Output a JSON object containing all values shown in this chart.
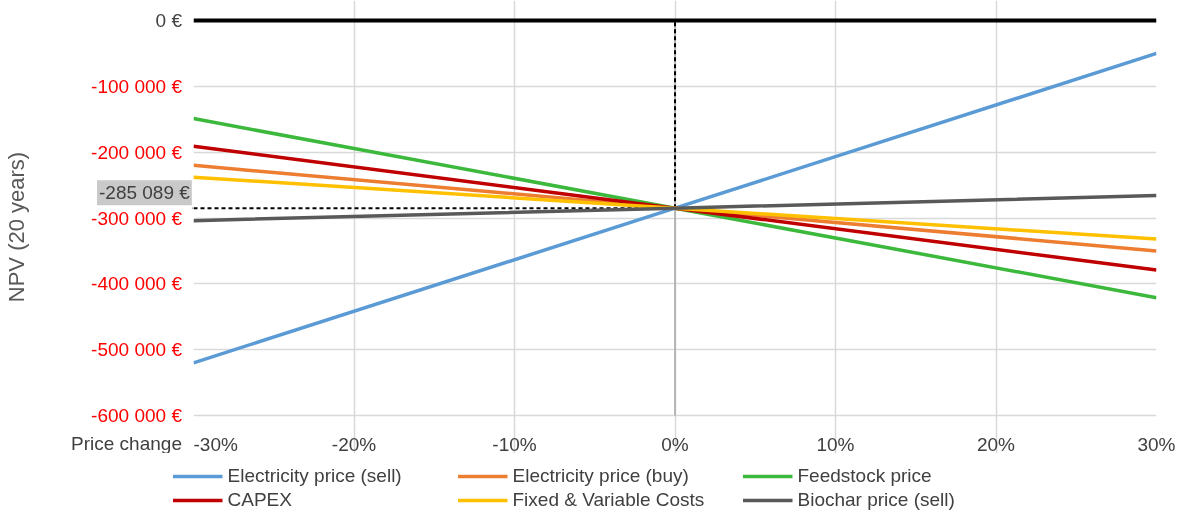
{
  "chart_data": {
    "type": "line",
    "xlabel": "Price change",
    "ylabel": "NPV (20 years)",
    "x": [
      -30,
      0,
      30
    ],
    "series": [
      {
        "name": "Electricity price (sell)",
        "color": "#5b9bd5",
        "values": [
          -520000,
          -285089,
          -50000
        ]
      },
      {
        "name": "Electricity price (buy)",
        "color": "#ed7d31",
        "values": [
          -220000,
          -285089,
          -350000
        ]
      },
      {
        "name": "Feedstock price",
        "color": "#3cb93c",
        "values": [
          -149000,
          -285089,
          -421000
        ]
      },
      {
        "name": "CAPEX",
        "color": "#c00000",
        "values": [
          -191000,
          -285089,
          -379000
        ]
      },
      {
        "name": "Fixed & Variable Costs",
        "color": "#ffc000",
        "values": [
          -238000,
          -285089,
          -332000
        ]
      },
      {
        "name": "Biochar price (sell)",
        "color": "#595959",
        "values": [
          -304000,
          -285089,
          -266000
        ]
      }
    ],
    "xlim": [
      -30,
      30
    ],
    "xticks": [
      {
        "value": -30,
        "label": "-30%"
      },
      {
        "value": -20,
        "label": "-20%"
      },
      {
        "value": -10,
        "label": "-10%"
      },
      {
        "value": 0,
        "label": "0%"
      },
      {
        "value": 10,
        "label": "10%"
      },
      {
        "value": 20,
        "label": "20%"
      },
      {
        "value": 30,
        "label": "30%"
      }
    ],
    "ylim": [
      -600000,
      0
    ],
    "yticks": [
      {
        "value": -600000,
        "label": "-600 000 €"
      },
      {
        "value": -500000,
        "label": "-500 000 €"
      },
      {
        "value": -400000,
        "label": "-400 000 €"
      },
      {
        "value": -300000,
        "label": "-300 000 €"
      },
      {
        "value": -200000,
        "label": "-200 000 €"
      },
      {
        "value": -100000,
        "label": "-100 000 €"
      },
      {
        "value": 0,
        "label": "0 €"
      }
    ],
    "ref_lines": [
      {
        "axis": "y",
        "value": 0,
        "color": "#000000",
        "line_style": "solid"
      },
      {
        "axis": "x",
        "value": 0,
        "color": "#000000",
        "line_style": "dashed"
      },
      {
        "axis": "y",
        "value": -285089,
        "label": "-285 089 €",
        "color": "#000000",
        "line_style": "dashed"
      }
    ],
    "grid": true,
    "legend": "bottom",
    "marker": "none",
    "line_style": "solid"
  }
}
